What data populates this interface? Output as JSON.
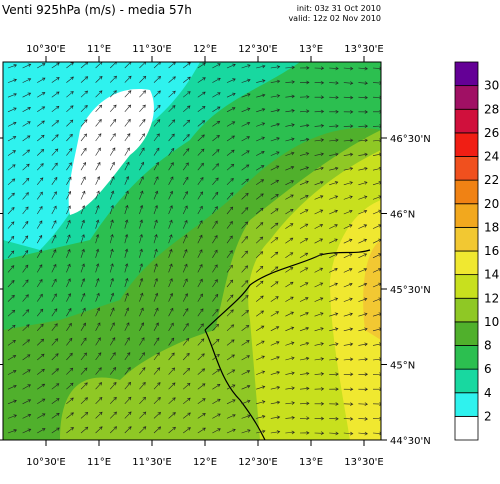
{
  "title": "Venti 925hPa (m/s) - media 57h",
  "init": "init: 03z 31 Oct 2010",
  "valid": "valid: 12z 02 Nov 2010",
  "x_axis": {
    "labels": [
      "10°30'E",
      "11°E",
      "11°30'E",
      "12°E",
      "12°30'E",
      "13°E",
      "13°30'E"
    ]
  },
  "y_axis": {
    "labels": [
      "44°30'N",
      "45°N",
      "45°30'N",
      "46°N",
      "46°30'N"
    ]
  },
  "colorbar": {
    "levels": [
      2,
      4,
      6,
      8,
      10,
      12,
      14,
      16,
      18,
      20,
      22,
      24,
      26,
      28,
      30
    ],
    "colors": [
      "#ffffff",
      "#2ff2ee",
      "#18d8a0",
      "#2cbf50",
      "#50b02c",
      "#8fc825",
      "#c8e01e",
      "#f0e830",
      "#f2c832",
      "#f2a81e",
      "#f08214",
      "#f0501e",
      "#f01e14",
      "#d0103c",
      "#a01064",
      "#640096"
    ]
  }
}
